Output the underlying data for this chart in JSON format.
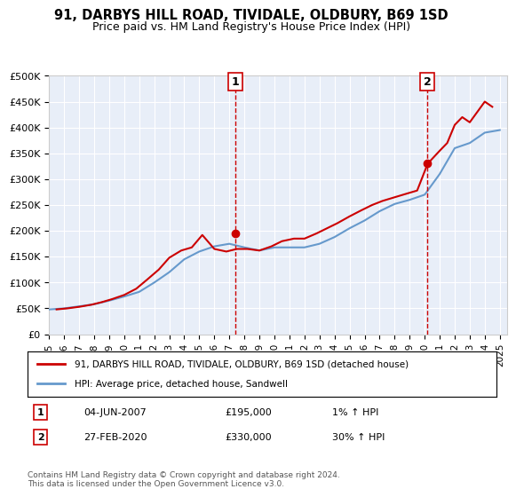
{
  "title": "91, DARBYS HILL ROAD, TIVIDALE, OLDBURY, B69 1SD",
  "subtitle": "Price paid vs. HM Land Registry's House Price Index (HPI)",
  "ylabel": "",
  "ylim": [
    0,
    500000
  ],
  "yticks": [
    0,
    50000,
    100000,
    150000,
    200000,
    250000,
    300000,
    350000,
    400000,
    450000,
    500000
  ],
  "ytick_labels": [
    "£0",
    "£50K",
    "£100K",
    "£150K",
    "£200K",
    "£250K",
    "£300K",
    "£350K",
    "£400K",
    "£450K",
    "£500K"
  ],
  "background_color": "#e8eef8",
  "plot_bg_color": "#e8eef8",
  "fig_bg_color": "#ffffff",
  "legend_label_red": "91, DARBYS HILL ROAD, TIVIDALE, OLDBURY, B69 1SD (detached house)",
  "legend_label_blue": "HPI: Average price, detached house, Sandwell",
  "sale1_date": "04-JUN-2007",
  "sale1_price": 195000,
  "sale1_hpi": "1% ↑ HPI",
  "sale2_date": "27-FEB-2020",
  "sale2_price": 330000,
  "sale2_hpi": "30% ↑ HPI",
  "footer": "Contains HM Land Registry data © Crown copyright and database right 2024.\nThis data is licensed under the Open Government Licence v3.0.",
  "red_color": "#cc0000",
  "blue_color": "#6699cc",
  "vline_color": "#cc0000",
  "grid_color": "#ffffff",
  "hpi_years": [
    1995,
    1996,
    1997,
    1998,
    1999,
    2000,
    2001,
    2002,
    2003,
    2004,
    2005,
    2006,
    2007,
    2008,
    2009,
    2010,
    2011,
    2012,
    2013,
    2014,
    2015,
    2016,
    2017,
    2018,
    2019,
    2020,
    2021,
    2022,
    2023,
    2024,
    2025
  ],
  "hpi_values": [
    48000,
    50000,
    54000,
    58000,
    65000,
    73000,
    82000,
    100000,
    120000,
    145000,
    160000,
    170000,
    175000,
    168000,
    162000,
    168000,
    168000,
    168000,
    175000,
    188000,
    205000,
    220000,
    238000,
    252000,
    260000,
    270000,
    310000,
    360000,
    370000,
    390000,
    395000
  ],
  "price_years": [
    1995.5,
    1996.2,
    1997.0,
    1997.8,
    1998.5,
    1999.2,
    2000.0,
    2000.8,
    2001.5,
    2002.3,
    2003.0,
    2003.8,
    2004.5,
    2005.2,
    2006.0,
    2006.8,
    2007.5,
    2008.2,
    2009.0,
    2009.8,
    2010.5,
    2011.3,
    2012.0,
    2012.8,
    2013.5,
    2014.2,
    2015.0,
    2015.8,
    2016.5,
    2017.2,
    2018.0,
    2018.8,
    2019.5,
    2020.2,
    2021.0,
    2021.5,
    2022.0,
    2022.5,
    2023.0,
    2023.5,
    2024.0,
    2024.5
  ],
  "price_values": [
    48000,
    50000,
    53000,
    57000,
    62000,
    68000,
    76000,
    88000,
    105000,
    125000,
    148000,
    162000,
    168000,
    192000,
    165000,
    160000,
    165000,
    165000,
    162000,
    170000,
    180000,
    185000,
    185000,
    195000,
    205000,
    215000,
    228000,
    240000,
    250000,
    258000,
    265000,
    272000,
    278000,
    330000,
    355000,
    370000,
    405000,
    420000,
    410000,
    430000,
    450000,
    440000
  ],
  "sale1_x": 2007.42,
  "sale2_x": 2020.16,
  "xticks": [
    1995,
    1996,
    1997,
    1998,
    1999,
    2000,
    2001,
    2002,
    2003,
    2004,
    2005,
    2006,
    2007,
    2008,
    2009,
    2010,
    2011,
    2012,
    2013,
    2014,
    2015,
    2016,
    2017,
    2018,
    2019,
    2020,
    2021,
    2022,
    2023,
    2024,
    2025
  ]
}
